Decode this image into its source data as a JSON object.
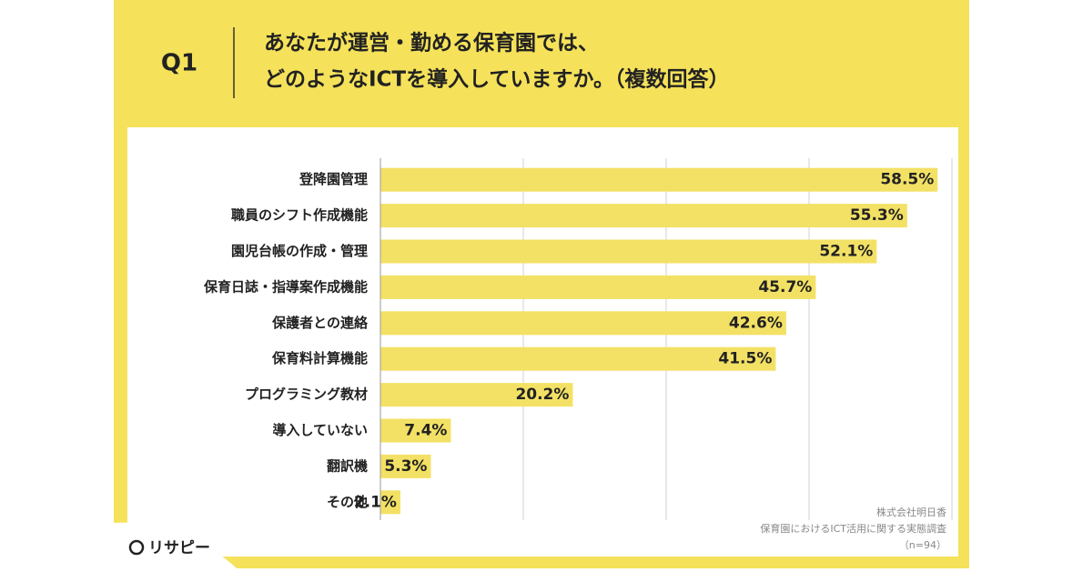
{
  "chart_data": {
    "type": "bar",
    "orientation": "horizontal",
    "question": "Q1",
    "title_lines": [
      "あなたが運営・勤める保育園では、",
      "どのようなICTを導入していますか。（複数回答）"
    ],
    "categories": [
      "登降園管理",
      "職員のシフト作成機能",
      "園児台帳の作成・管理",
      "保育日誌・指導案作成機能",
      "保護者との連絡",
      "保育料計算機能",
      "プログラミング教材",
      "導入していない",
      "翻訳機",
      "その他"
    ],
    "values": [
      58.5,
      55.3,
      52.1,
      45.7,
      42.6,
      41.5,
      20.2,
      7.4,
      5.3,
      2.1
    ],
    "value_labels": [
      "58.5%",
      "55.3%",
      "52.1%",
      "45.7%",
      "42.6%",
      "41.5%",
      "20.2%",
      "7.4%",
      "5.3%",
      "2.1%"
    ],
    "color": "#f3e165",
    "xlim": [
      0,
      60
    ],
    "xticks": [
      0,
      15,
      30,
      45,
      60
    ],
    "grid": true,
    "source": [
      "株式会社明日香",
      "保育園におけるICT活用に関する実態調査",
      "（n=94）"
    ],
    "logo": "リサピー"
  }
}
